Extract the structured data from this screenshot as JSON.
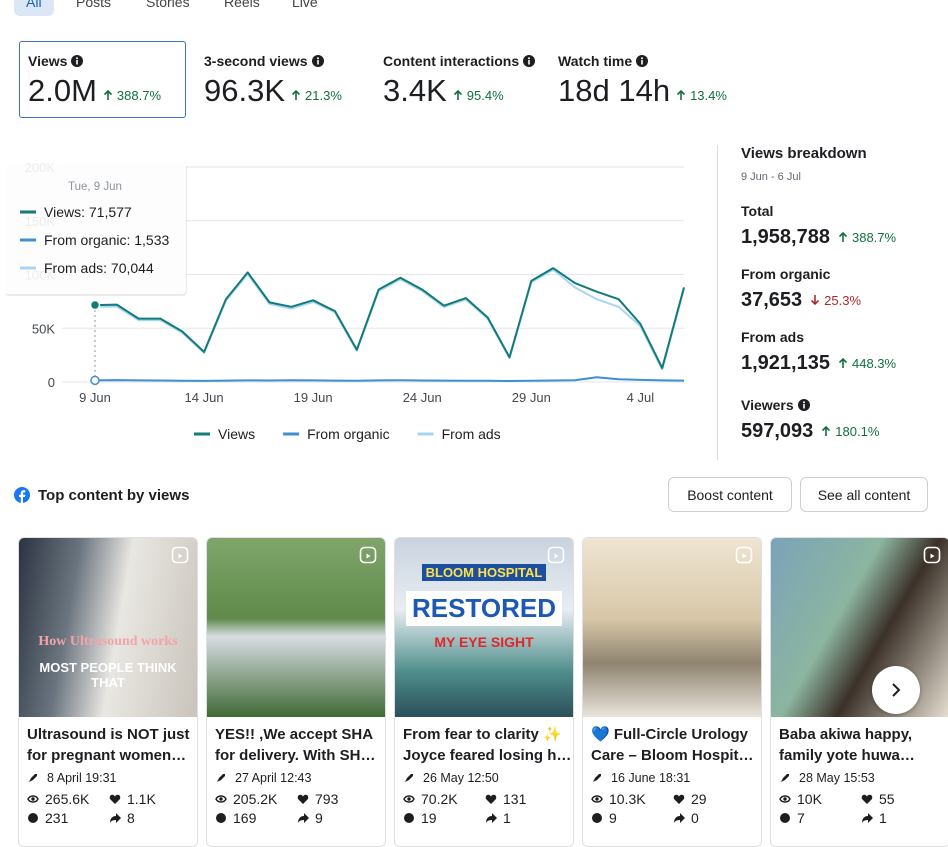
{
  "tabs": [
    "All",
    "Posts",
    "Stories",
    "Reels",
    "Live"
  ],
  "metrics": [
    {
      "label": "Views",
      "value": "2.0M",
      "change": "388.7%",
      "direction": "up"
    },
    {
      "label": "3-second views",
      "value": "96.3K",
      "change": "21.3%",
      "direction": "up"
    },
    {
      "label": "Content interactions",
      "value": "3.4K",
      "change": "95.4%",
      "direction": "up"
    },
    {
      "label": "Watch time",
      "value": "18d 14h",
      "change": "13.4%",
      "direction": "up"
    }
  ],
  "chart_data": {
    "type": "line",
    "categories": [
      "9 Jun",
      null,
      null,
      null,
      null,
      "14 Jun",
      null,
      null,
      null,
      null,
      "19 Jun",
      null,
      null,
      null,
      null,
      "24 Jun",
      null,
      null,
      null,
      null,
      "29 Jun",
      null,
      null,
      null,
      null,
      "4 Jul",
      null,
      null
    ],
    "series": [
      {
        "name": "Views",
        "color": "#127b78",
        "values": [
          71577,
          72000,
          59000,
          59000,
          47000,
          28000,
          77000,
          102000,
          74000,
          70000,
          76000,
          66000,
          30000,
          86000,
          97000,
          86000,
          71000,
          78000,
          60000,
          23000,
          94000,
          106000,
          92000,
          84000,
          77000,
          54000,
          13000,
          88000
        ]
      },
      {
        "name": "From organic",
        "color": "#3d8fd6",
        "values": [
          1533,
          1800,
          1500,
          1400,
          1200,
          1000,
          1300,
          1500,
          1400,
          1700,
          1500,
          1300,
          1100,
          1500,
          1600,
          1400,
          1300,
          1200,
          1100,
          900,
          1200,
          1400,
          1700,
          4500,
          2500,
          2000,
          1500,
          1300
        ]
      },
      {
        "name": "From ads",
        "color": "#a9d5f5",
        "values": [
          70044,
          70200,
          57500,
          57600,
          45800,
          27000,
          75700,
          100500,
          72600,
          68300,
          74500,
          64700,
          28900,
          84500,
          95400,
          84600,
          69700,
          76800,
          58900,
          22100,
          92800,
          104600,
          88000,
          77000,
          70000,
          52000,
          11500,
          86700
        ]
      }
    ],
    "ylim": [
      0,
      200000
    ],
    "yticks": [
      0,
      {
        "value": 50000,
        "label": "50K"
      },
      {
        "value": 100000,
        "label": "100K"
      },
      {
        "value": 150000,
        "label": "150K"
      },
      {
        "value": 200000,
        "label": "200K"
      }
    ],
    "grid": true,
    "legend": "bottom",
    "tooltip": {
      "title": "Tue, 9 Jun",
      "items": [
        "Views: 71,577",
        "From organic: 1,533",
        "From ads: 70,044"
      ]
    }
  },
  "breakdown": {
    "title": "Views breakdown",
    "date_range": "9 Jun - 6 Jul",
    "items": [
      {
        "label": "Total",
        "value": "1,958,788",
        "change": "388.7%",
        "direction": "up"
      },
      {
        "label": "From organic",
        "value": "37,653",
        "change": "25.3%",
        "direction": "down"
      },
      {
        "label": "From ads",
        "value": "1,921,135",
        "change": "448.3%",
        "direction": "up"
      },
      {
        "label": "Viewers",
        "value": "597,093",
        "change": "180.1%",
        "direction": "up",
        "info": true
      }
    ]
  },
  "top_content": {
    "title": "Top content by views",
    "buttons": [
      "Boost content",
      "See all content"
    ],
    "posts": [
      {
        "thumbnail_text": [
          "How Ultrasound works",
          "MOST PEOPLE THINK",
          "THAT"
        ],
        "title_lines": [
          "Ultrasound is NOT just",
          "for pregnant women…"
        ],
        "date": "8 April 19:31",
        "views": "265.6K",
        "reactions": "1.1K",
        "comments": "231",
        "shares": "8"
      },
      {
        "thumbnail_text": [],
        "title_lines": [
          "YES!! ,We accept SHA",
          "for delivery. With SH…"
        ],
        "date": "27 April 12:43",
        "views": "205.2K",
        "reactions": "793",
        "comments": "169",
        "shares": "9"
      },
      {
        "thumbnail_text": [
          "BLOOM HOSPITAL",
          "RESTORED",
          "MY EYE SIGHT"
        ],
        "title_lines": [
          "From fear to clarity ✨",
          "Joyce feared losing h…"
        ],
        "date": "26 May 12:50",
        "views": "70.2K",
        "reactions": "131",
        "comments": "19",
        "shares": "1"
      },
      {
        "thumbnail_text": [],
        "title_lines": [
          "💙 Full-Circle Urology",
          "Care – Bloom Hospit…"
        ],
        "date": "16 June 18:31",
        "views": "10.3K",
        "reactions": "29",
        "comments": "9",
        "shares": "0"
      },
      {
        "thumbnail_text": [],
        "title_lines": [
          "Baba akiwa happy,",
          "family yote huwa…"
        ],
        "date": "28 May 15:53",
        "views": "10K",
        "reactions": "55",
        "comments": "7",
        "shares": "1"
      }
    ]
  }
}
